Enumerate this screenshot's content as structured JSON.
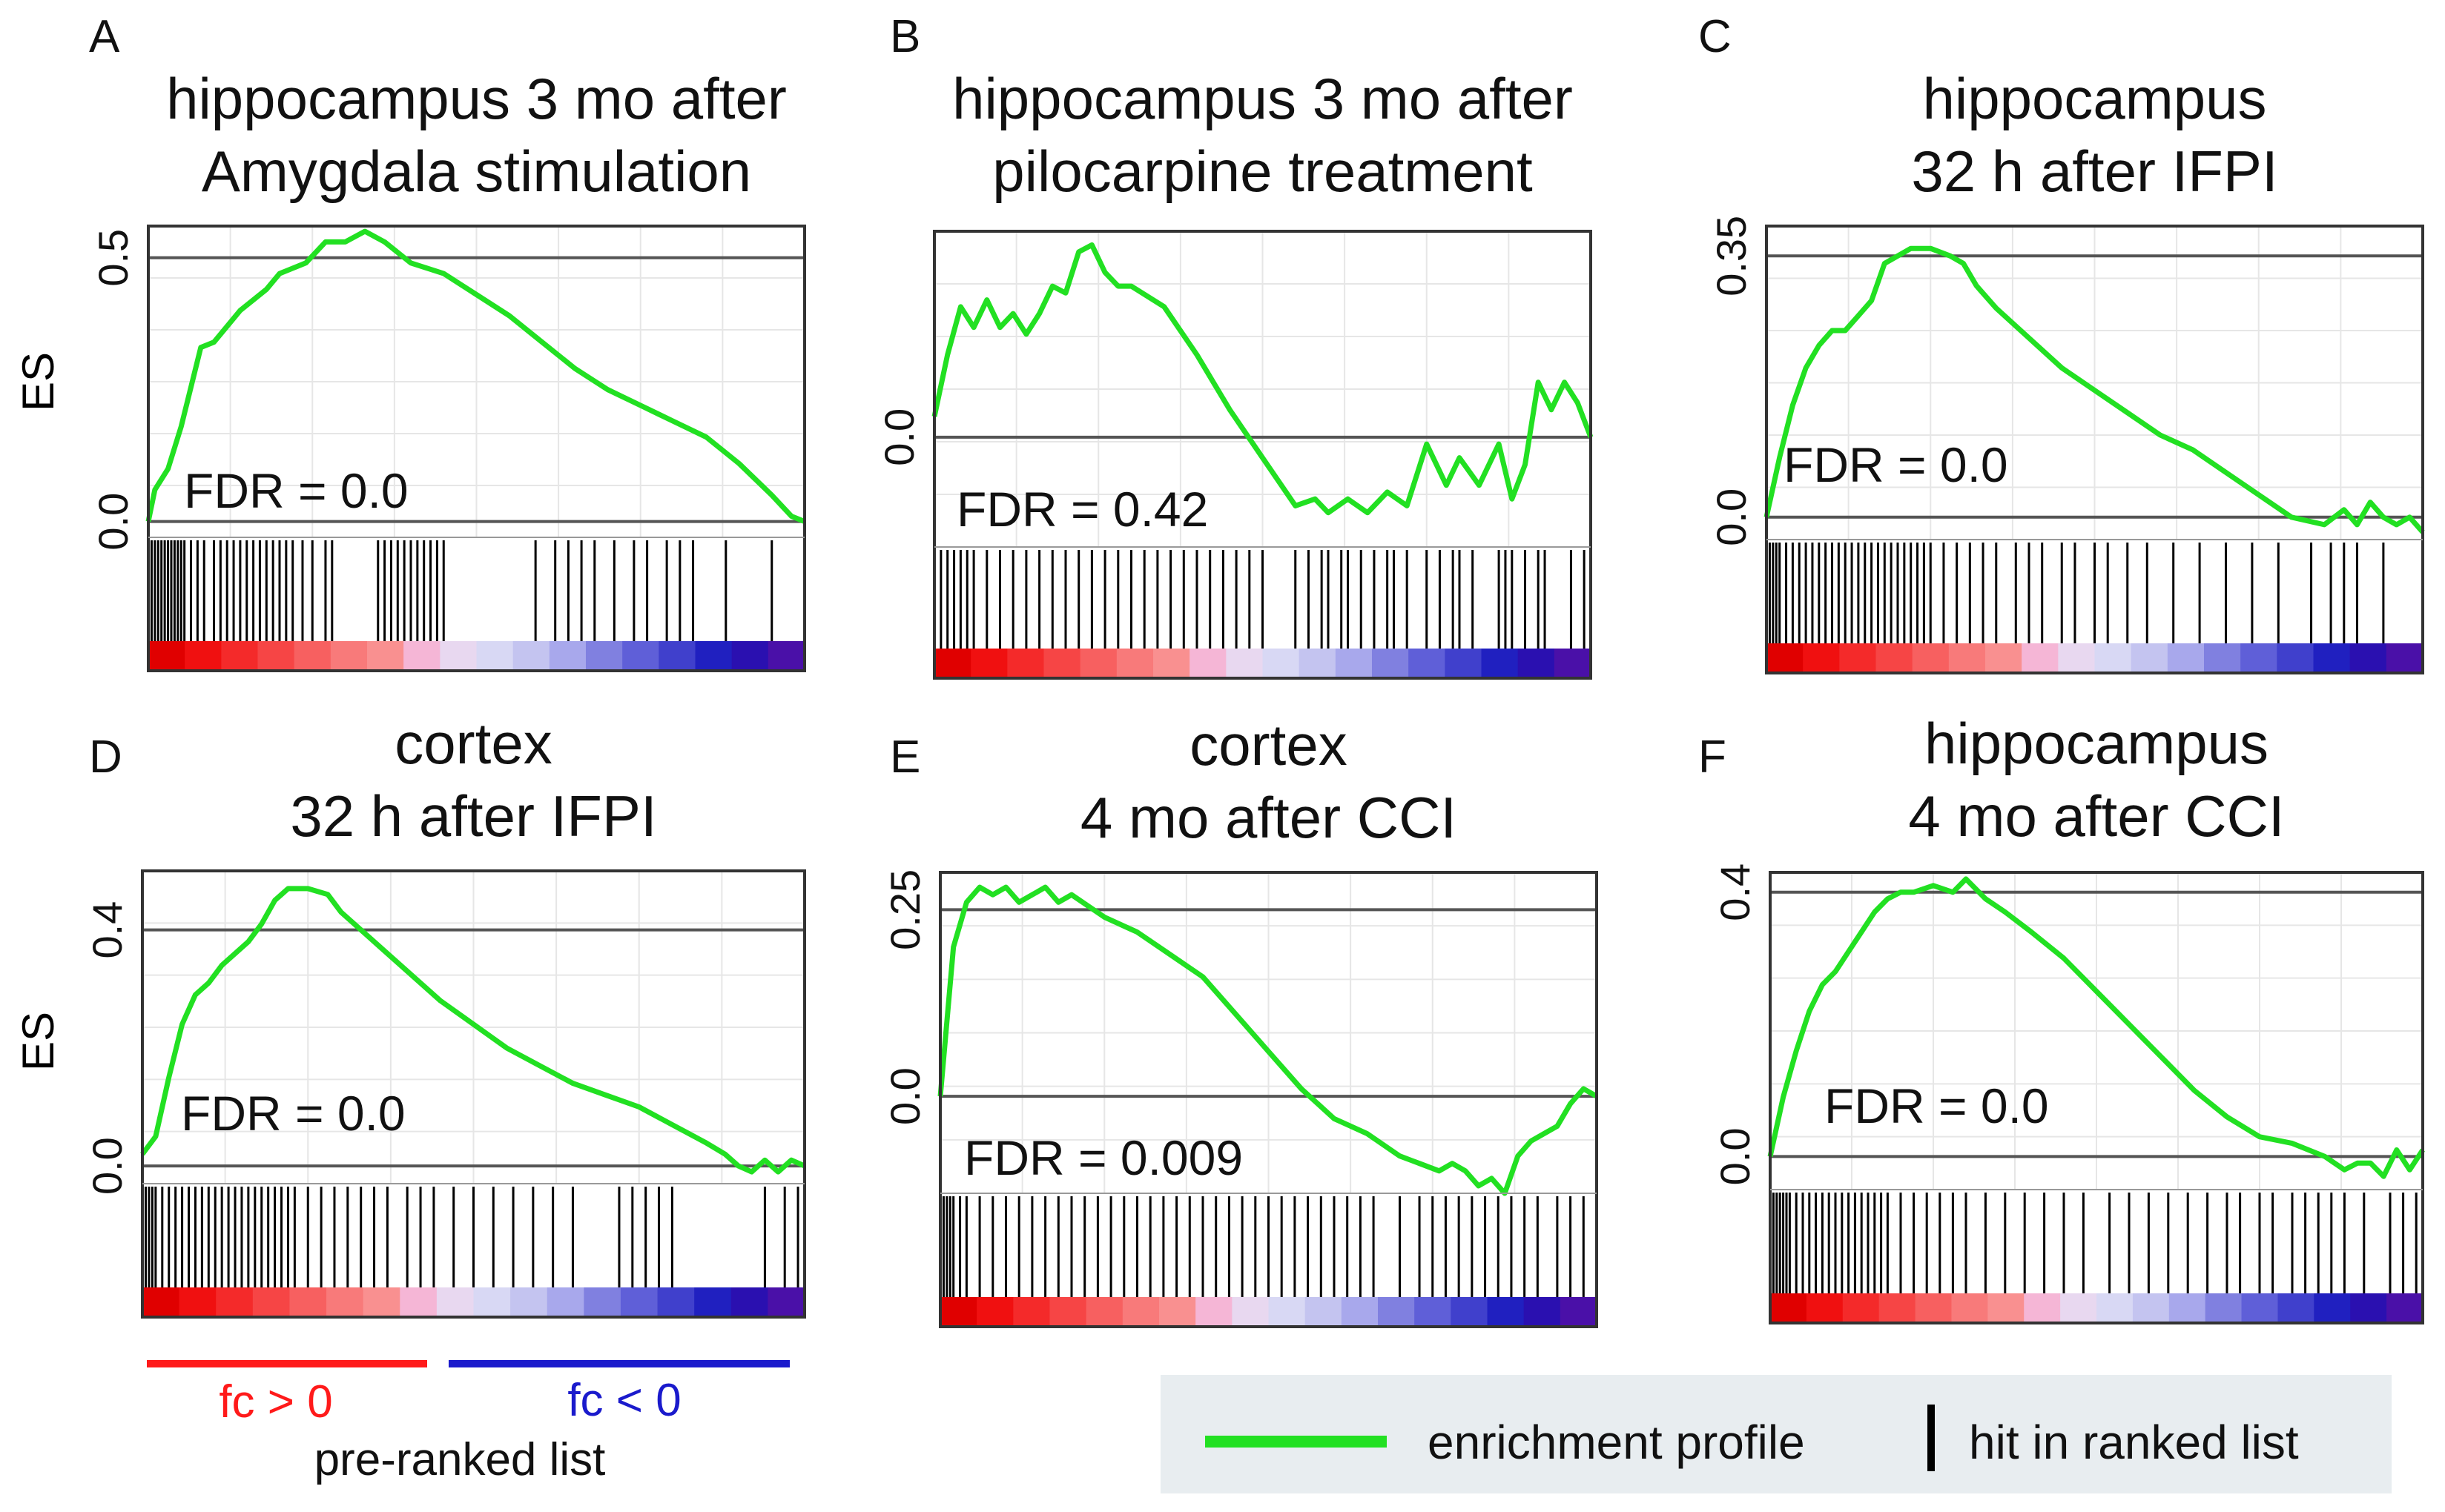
{
  "figure": {
    "y_label": "ES",
    "colorbar_positive_label": "fc > 0",
    "colorbar_negative_label": "fc < 0",
    "colorbar_caption": "pre-ranked list",
    "legend": {
      "profile_label": "enrichment profile",
      "hit_label": "hit in ranked list",
      "profile_color": "#22e022",
      "hit_color": "#000000"
    },
    "colors": {
      "profile": "#22e022",
      "axis_line": "#555555",
      "grid": "#e6e6e6",
      "positive_bar": "#ff1a1a",
      "negative_bar": "#1a1acc",
      "legend_bg": "#e8edf0"
    }
  },
  "chart_data": [
    {
      "panel": "A",
      "type": "line",
      "title_line1": "hippocampus 3 mo after",
      "title_line2": "Amygdala stimulation",
      "fdr_label": "FDR = 0.0",
      "ylim": [
        -0.03,
        0.56
      ],
      "ref_value": 0.5,
      "y_ticks": [
        {
          "value": 0,
          "label": "0.0"
        },
        {
          "value": 0.5,
          "label": "0.5"
        }
      ],
      "x": [
        0,
        0.01,
        0.03,
        0.05,
        0.08,
        0.1,
        0.14,
        0.18,
        0.2,
        0.24,
        0.27,
        0.3,
        0.33,
        0.36,
        0.4,
        0.45,
        0.5,
        0.55,
        0.6,
        0.65,
        0.7,
        0.75,
        0.8,
        0.85,
        0.9,
        0.95,
        0.98,
        1
      ],
      "profile": [
        0,
        0.06,
        0.1,
        0.18,
        0.33,
        0.34,
        0.4,
        0.44,
        0.47,
        0.49,
        0.53,
        0.53,
        0.55,
        0.53,
        0.49,
        0.47,
        0.43,
        0.39,
        0.34,
        0.29,
        0.25,
        0.22,
        0.19,
        0.16,
        0.11,
        0.05,
        0.01,
        0
      ],
      "hits": [
        0.005,
        0.01,
        0.015,
        0.02,
        0.025,
        0.03,
        0.035,
        0.04,
        0.045,
        0.05,
        0.055,
        0.065,
        0.075,
        0.085,
        0.1,
        0.11,
        0.12,
        0.13,
        0.14,
        0.15,
        0.16,
        0.17,
        0.18,
        0.19,
        0.2,
        0.21,
        0.22,
        0.235,
        0.25,
        0.27,
        0.28,
        0.35,
        0.36,
        0.37,
        0.38,
        0.39,
        0.4,
        0.41,
        0.42,
        0.43,
        0.44,
        0.45,
        0.59,
        0.62,
        0.64,
        0.66,
        0.68,
        0.71,
        0.74,
        0.76,
        0.79,
        0.81,
        0.83,
        0.88,
        0.95
      ]
    },
    {
      "panel": "B",
      "type": "line",
      "title_line1": "hippocampus 3 mo after",
      "title_line2": "pilocarpine treatment",
      "fdr_label": "FDR = 0.42",
      "ylim": [
        -0.16,
        0.3
      ],
      "ref_value": 0,
      "y_ticks": [
        {
          "value": 0,
          "label": "0.0"
        }
      ],
      "x": [
        0,
        0.02,
        0.04,
        0.06,
        0.08,
        0.1,
        0.12,
        0.14,
        0.16,
        0.18,
        0.2,
        0.22,
        0.24,
        0.26,
        0.28,
        0.3,
        0.35,
        0.4,
        0.45,
        0.5,
        0.55,
        0.58,
        0.6,
        0.63,
        0.66,
        0.69,
        0.72,
        0.75,
        0.78,
        0.8,
        0.83,
        0.86,
        0.88,
        0.9,
        0.92,
        0.94,
        0.96,
        0.98,
        1
      ],
      "profile": [
        0.03,
        0.12,
        0.19,
        0.16,
        0.2,
        0.16,
        0.18,
        0.15,
        0.18,
        0.22,
        0.21,
        0.27,
        0.28,
        0.24,
        0.22,
        0.22,
        0.19,
        0.12,
        0.04,
        -0.03,
        -0.1,
        -0.09,
        -0.11,
        -0.09,
        -0.11,
        -0.08,
        -0.1,
        -0.01,
        -0.07,
        -0.03,
        -0.07,
        -0.01,
        -0.09,
        -0.04,
        0.08,
        0.04,
        0.08,
        0.05,
        0
      ],
      "hits": [
        0.01,
        0.02,
        0.03,
        0.04,
        0.05,
        0.06,
        0.08,
        0.1,
        0.12,
        0.14,
        0.16,
        0.18,
        0.2,
        0.22,
        0.24,
        0.26,
        0.28,
        0.3,
        0.32,
        0.34,
        0.36,
        0.38,
        0.4,
        0.42,
        0.44,
        0.46,
        0.48,
        0.5,
        0.55,
        0.57,
        0.59,
        0.6,
        0.62,
        0.63,
        0.65,
        0.67,
        0.69,
        0.7,
        0.72,
        0.75,
        0.77,
        0.79,
        0.8,
        0.82,
        0.86,
        0.87,
        0.88,
        0.9,
        0.92,
        0.93,
        0.97,
        0.99
      ]
    },
    {
      "panel": "C",
      "type": "line",
      "title_line1": "hippocampus",
      "title_line2": "32 h after IFPI",
      "fdr_label": "FDR = 0.0",
      "ylim": [
        -0.03,
        0.39
      ],
      "ref_value": 0.35,
      "y_ticks": [
        {
          "value": 0,
          "label": "0.0"
        },
        {
          "value": 0.35,
          "label": "0.35"
        }
      ],
      "x": [
        0,
        0.02,
        0.04,
        0.06,
        0.08,
        0.1,
        0.12,
        0.14,
        0.16,
        0.18,
        0.2,
        0.22,
        0.25,
        0.28,
        0.3,
        0.32,
        0.35,
        0.4,
        0.45,
        0.5,
        0.55,
        0.6,
        0.65,
        0.7,
        0.75,
        0.8,
        0.85,
        0.88,
        0.9,
        0.92,
        0.94,
        0.96,
        0.98,
        1
      ],
      "profile": [
        0,
        0.08,
        0.15,
        0.2,
        0.23,
        0.25,
        0.25,
        0.27,
        0.29,
        0.34,
        0.35,
        0.36,
        0.36,
        0.35,
        0.34,
        0.31,
        0.28,
        0.24,
        0.2,
        0.17,
        0.14,
        0.11,
        0.09,
        0.06,
        0.03,
        0,
        -0.01,
        0.01,
        -0.01,
        0.02,
        0,
        -0.01,
        0,
        -0.02
      ],
      "hits": [
        0.005,
        0.01,
        0.015,
        0.02,
        0.03,
        0.04,
        0.05,
        0.06,
        0.07,
        0.08,
        0.09,
        0.1,
        0.11,
        0.12,
        0.13,
        0.14,
        0.15,
        0.16,
        0.17,
        0.18,
        0.19,
        0.2,
        0.21,
        0.22,
        0.23,
        0.24,
        0.25,
        0.27,
        0.29,
        0.31,
        0.33,
        0.35,
        0.38,
        0.4,
        0.42,
        0.45,
        0.47,
        0.5,
        0.52,
        0.55,
        0.58,
        0.62,
        0.66,
        0.7,
        0.74,
        0.78,
        0.83,
        0.86,
        0.88,
        0.9,
        0.94
      ]
    },
    {
      "panel": "D",
      "type": "line",
      "title_line1": "cortex",
      "title_line2": "32 h after IFPI",
      "fdr_label": "FDR = 0.0",
      "ylim": [
        -0.03,
        0.5
      ],
      "ref_value": 0.4,
      "y_ticks": [
        {
          "value": 0,
          "label": "0.0"
        },
        {
          "value": 0.4,
          "label": "0.4"
        }
      ],
      "x": [
        0,
        0.02,
        0.04,
        0.06,
        0.08,
        0.1,
        0.12,
        0.14,
        0.16,
        0.18,
        0.2,
        0.22,
        0.25,
        0.28,
        0.3,
        0.35,
        0.4,
        0.45,
        0.5,
        0.55,
        0.6,
        0.65,
        0.7,
        0.75,
        0.8,
        0.85,
        0.88,
        0.9,
        0.92,
        0.94,
        0.96,
        0.98,
        1
      ],
      "profile": [
        0.02,
        0.05,
        0.15,
        0.24,
        0.29,
        0.31,
        0.34,
        0.36,
        0.38,
        0.41,
        0.45,
        0.47,
        0.47,
        0.46,
        0.43,
        0.38,
        0.33,
        0.28,
        0.24,
        0.2,
        0.17,
        0.14,
        0.12,
        0.1,
        0.07,
        0.04,
        0.02,
        0,
        -0.01,
        0.01,
        -0.01,
        0.01,
        0
      ],
      "hits": [
        0.005,
        0.01,
        0.015,
        0.02,
        0.03,
        0.04,
        0.05,
        0.06,
        0.07,
        0.08,
        0.09,
        0.1,
        0.11,
        0.12,
        0.13,
        0.14,
        0.15,
        0.16,
        0.17,
        0.18,
        0.19,
        0.2,
        0.21,
        0.22,
        0.23,
        0.25,
        0.27,
        0.29,
        0.31,
        0.33,
        0.35,
        0.37,
        0.4,
        0.42,
        0.44,
        0.47,
        0.5,
        0.53,
        0.56,
        0.59,
        0.62,
        0.65,
        0.72,
        0.74,
        0.76,
        0.78,
        0.8,
        0.94,
        0.97,
        0.99
      ]
    },
    {
      "panel": "E",
      "type": "line",
      "title_line1": "cortex",
      "title_line2": "4 mo after CCI",
      "fdr_label": "FDR = 0.009",
      "ylim": [
        -0.13,
        0.3
      ],
      "ref_value": 0.25,
      "y_ticks": [
        {
          "value": 0,
          "label": "0.0"
        },
        {
          "value": 0.25,
          "label": "0.25"
        }
      ],
      "x": [
        0,
        0.02,
        0.04,
        0.06,
        0.08,
        0.1,
        0.12,
        0.14,
        0.16,
        0.18,
        0.2,
        0.25,
        0.3,
        0.35,
        0.4,
        0.45,
        0.5,
        0.55,
        0.6,
        0.65,
        0.7,
        0.73,
        0.76,
        0.78,
        0.8,
        0.82,
        0.84,
        0.86,
        0.88,
        0.9,
        0.92,
        0.94,
        0.96,
        0.98,
        1
      ],
      "profile": [
        0,
        0.2,
        0.26,
        0.28,
        0.27,
        0.28,
        0.26,
        0.27,
        0.28,
        0.26,
        0.27,
        0.24,
        0.22,
        0.19,
        0.16,
        0.11,
        0.06,
        0.01,
        -0.03,
        -0.05,
        -0.08,
        -0.09,
        -0.1,
        -0.09,
        -0.1,
        -0.12,
        -0.11,
        -0.13,
        -0.08,
        -0.06,
        -0.05,
        -0.04,
        -0.01,
        0.01,
        0
      ],
      "hits": [
        0.005,
        0.01,
        0.015,
        0.02,
        0.03,
        0.04,
        0.06,
        0.08,
        0.1,
        0.12,
        0.14,
        0.16,
        0.18,
        0.2,
        0.22,
        0.24,
        0.26,
        0.28,
        0.3,
        0.32,
        0.34,
        0.36,
        0.38,
        0.4,
        0.42,
        0.44,
        0.46,
        0.48,
        0.5,
        0.52,
        0.54,
        0.56,
        0.58,
        0.6,
        0.62,
        0.64,
        0.66,
        0.7,
        0.73,
        0.75,
        0.77,
        0.79,
        0.81,
        0.83,
        0.85,
        0.87,
        0.89,
        0.91,
        0.94,
        0.96,
        0.98
      ]
    },
    {
      "panel": "F",
      "type": "line",
      "title_line1": "hippocampus",
      "title_line2": "4 mo after CCI",
      "fdr_label": "FDR = 0.0",
      "ylim": [
        -0.05,
        0.43
      ],
      "ref_value": 0.4,
      "y_ticks": [
        {
          "value": 0,
          "label": "0.0"
        },
        {
          "value": 0.4,
          "label": "0.4"
        }
      ],
      "x": [
        0,
        0.02,
        0.04,
        0.06,
        0.08,
        0.1,
        0.12,
        0.14,
        0.16,
        0.18,
        0.2,
        0.22,
        0.25,
        0.28,
        0.3,
        0.33,
        0.36,
        0.4,
        0.45,
        0.5,
        0.55,
        0.6,
        0.65,
        0.7,
        0.75,
        0.8,
        0.85,
        0.88,
        0.9,
        0.92,
        0.94,
        0.96,
        0.98,
        1
      ],
      "profile": [
        0,
        0.09,
        0.16,
        0.22,
        0.26,
        0.28,
        0.31,
        0.34,
        0.37,
        0.39,
        0.4,
        0.4,
        0.41,
        0.4,
        0.42,
        0.39,
        0.37,
        0.34,
        0.3,
        0.25,
        0.2,
        0.15,
        0.1,
        0.06,
        0.03,
        0.02,
        0,
        -0.02,
        -0.01,
        -0.01,
        -0.03,
        0.01,
        -0.02,
        0.01
      ],
      "hits": [
        0.005,
        0.01,
        0.015,
        0.02,
        0.025,
        0.03,
        0.04,
        0.05,
        0.06,
        0.07,
        0.08,
        0.09,
        0.1,
        0.11,
        0.12,
        0.13,
        0.14,
        0.15,
        0.16,
        0.17,
        0.18,
        0.2,
        0.22,
        0.24,
        0.26,
        0.28,
        0.3,
        0.33,
        0.36,
        0.39,
        0.42,
        0.45,
        0.48,
        0.52,
        0.55,
        0.58,
        0.61,
        0.64,
        0.67,
        0.7,
        0.72,
        0.75,
        0.77,
        0.8,
        0.82,
        0.84,
        0.86,
        0.88,
        0.91,
        0.95,
        0.97,
        0.99
      ]
    }
  ]
}
